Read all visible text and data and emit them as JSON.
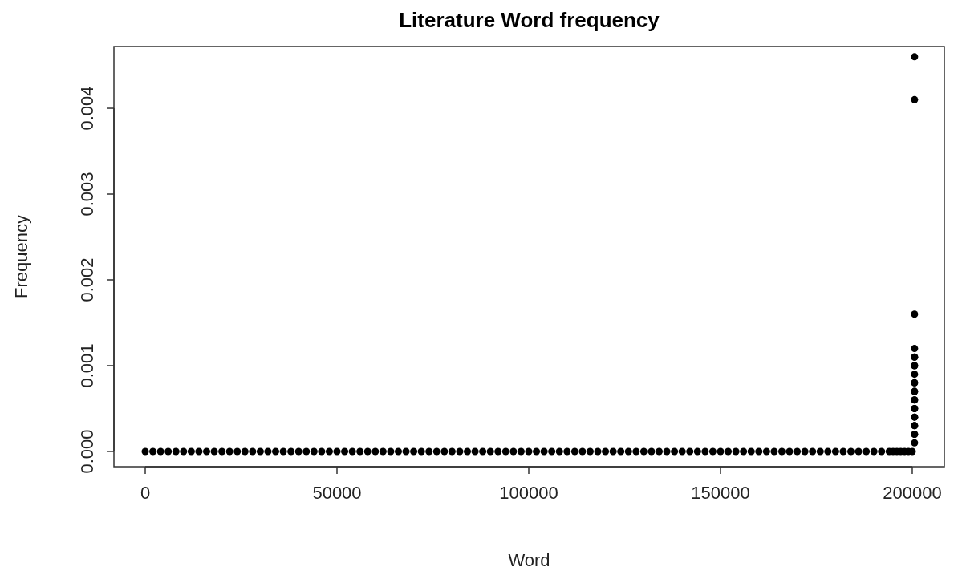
{
  "chart_data": {
    "type": "scatter",
    "title": "Literature Word frequency",
    "xlabel": "Word",
    "ylabel": "Frequency",
    "x": [
      0,
      2000,
      4000,
      6000,
      8000,
      10000,
      12000,
      14000,
      16000,
      18000,
      20000,
      22000,
      24000,
      26000,
      28000,
      30000,
      32000,
      34000,
      36000,
      38000,
      40000,
      42000,
      44000,
      46000,
      48000,
      50000,
      52000,
      54000,
      56000,
      58000,
      60000,
      62000,
      64000,
      66000,
      68000,
      70000,
      72000,
      74000,
      76000,
      78000,
      80000,
      82000,
      84000,
      86000,
      88000,
      90000,
      92000,
      94000,
      96000,
      98000,
      100000,
      102000,
      104000,
      106000,
      108000,
      110000,
      112000,
      114000,
      116000,
      118000,
      120000,
      122000,
      124000,
      126000,
      128000,
      130000,
      132000,
      134000,
      136000,
      138000,
      140000,
      142000,
      144000,
      146000,
      148000,
      150000,
      152000,
      154000,
      156000,
      158000,
      160000,
      162000,
      164000,
      166000,
      168000,
      170000,
      172000,
      174000,
      176000,
      178000,
      180000,
      182000,
      184000,
      186000,
      188000,
      190000,
      192000,
      194000,
      195000,
      196000,
      197000,
      198000,
      199000,
      200000,
      200600,
      200600,
      200600,
      200600,
      200600,
      200600,
      200600,
      200600,
      200600,
      200600,
      200600,
      200600,
      200600,
      200600,
      200600,
      200600,
      200600,
      200600,
      200600,
      200600,
      200600,
      200600,
      200600,
      200600
    ],
    "values": [
      0,
      0,
      0,
      0,
      0,
      0,
      0,
      0,
      0,
      0,
      0,
      0,
      0,
      0,
      0,
      0,
      0,
      0,
      0,
      0,
      0,
      0,
      0,
      0,
      0,
      0,
      0,
      0,
      0,
      0,
      0,
      0,
      0,
      0,
      0,
      0,
      0,
      0,
      0,
      0,
      0,
      0,
      0,
      0,
      0,
      0,
      0,
      0,
      0,
      0,
      0,
      0,
      0,
      0,
      0,
      0,
      0,
      0,
      0,
      0,
      0,
      0,
      0,
      0,
      0,
      0,
      0,
      0,
      0,
      0,
      0,
      0,
      0,
      0,
      0,
      0,
      0,
      0,
      0,
      0,
      0,
      0,
      0,
      0,
      0,
      0,
      0,
      0,
      0,
      0,
      0,
      0,
      0,
      0,
      0,
      0,
      0,
      0,
      0,
      0,
      0,
      0,
      0,
      0,
      0.0001,
      0.0002,
      0.0002,
      0.0003,
      0.0003,
      0.0004,
      0.0004,
      0.0005,
      0.0005,
      0.0006,
      0.0006,
      0.0007,
      0.0007,
      0.0008,
      0.0008,
      0.0009,
      0.001,
      0.001,
      0.0011,
      0.0011,
      0.0012,
      0.0016,
      0.0041,
      0.0046
    ],
    "color": "#000000",
    "marker": "circle",
    "xlim": [
      -8160,
      208370
    ],
    "ylim": [
      -0.000178,
      0.00472
    ],
    "xticks": [
      0,
      50000,
      100000,
      150000,
      200000
    ],
    "yticks": [
      {
        "value": 0,
        "label": "0.000"
      },
      {
        "value": 0.001,
        "label": "0.001"
      },
      {
        "value": 0.002,
        "label": "0.002"
      },
      {
        "value": 0.003,
        "label": "0.003"
      },
      {
        "value": 0.004,
        "label": "0.004"
      }
    ],
    "grid": false
  }
}
